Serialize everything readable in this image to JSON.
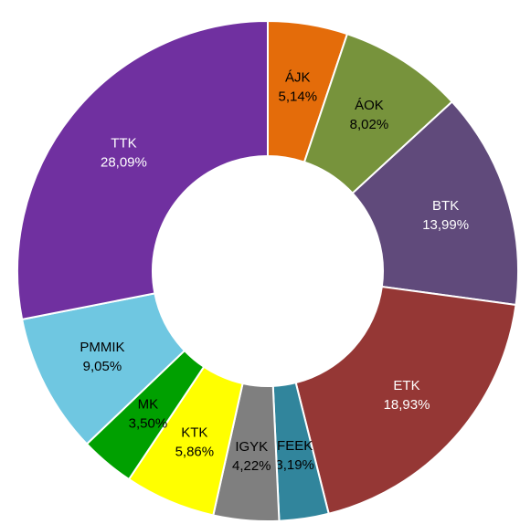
{
  "chart_data": {
    "type": "donut",
    "categories": [
      "ÁJK",
      "ÁOK",
      "BTK",
      "ETK",
      "FEEK",
      "IGYK",
      "KTK",
      "MK",
      "PMMIK",
      "TTK"
    ],
    "values": [
      5.14,
      8.02,
      13.99,
      18.93,
      3.19,
      4.22,
      5.86,
      3.5,
      9.05,
      28.09
    ],
    "value_labels": [
      "5,14%",
      "8,02%",
      "13,99%",
      "18,93%",
      "3,19%",
      "4,22%",
      "5,86%",
      "3,50%",
      "9,05%",
      "28,09%"
    ],
    "colors": [
      "#e46c0a",
      "#77933c",
      "#604a7b",
      "#953735",
      "#31859c",
      "#7f7f7f",
      "#ffff00",
      "#00a000",
      "#6fc7e1",
      "#7030a0"
    ],
    "label_colors": [
      "#000000",
      "#000000",
      "#ffffff",
      "#ffffff",
      "#000000",
      "#000000",
      "#000000",
      "#000000",
      "#000000",
      "#ffffff"
    ]
  }
}
